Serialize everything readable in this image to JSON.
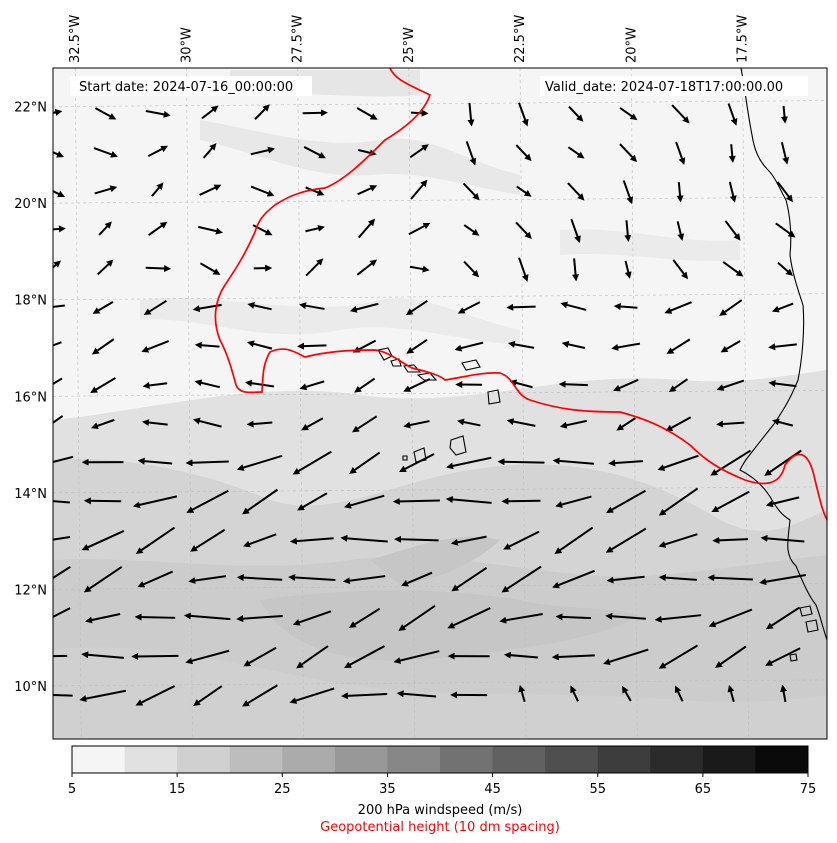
{
  "header": {
    "start_date": "Start date: 2024-07-16_00:00:00",
    "valid_date": "Valid_date: 2024-07-18T17:00:00.00"
  },
  "map": {
    "lon_labels": [
      "32.5°W",
      "30°W",
      "27.5°W",
      "25°W",
      "22.5°W",
      "20°W",
      "17.5°W"
    ],
    "lon_values": [
      -32.5,
      -30,
      -27.5,
      -25,
      -22.5,
      -20,
      -17.5
    ],
    "lat_labels": [
      "22°N",
      "20°N",
      "18°N",
      "16°N",
      "14°N",
      "12°N",
      "10°N"
    ],
    "lat_values": [
      22,
      20,
      18,
      16,
      14,
      12,
      10
    ],
    "lon_range": [
      -33,
      -15.6
    ],
    "lat_range": [
      8.9,
      22.8
    ],
    "gridlines": true,
    "contour_color": "#ff0000",
    "coast_color": "#000000"
  },
  "colorbar": {
    "tick_labels": [
      "5",
      "15",
      "25",
      "35",
      "45",
      "55",
      "65",
      "75"
    ],
    "levels": [
      5,
      10,
      15,
      20,
      25,
      30,
      35,
      40,
      45,
      50,
      55,
      60,
      65,
      70,
      75
    ],
    "colors": [
      "#f5f5f5",
      "#e1e1e1",
      "#d0d0d0",
      "#bdbdbd",
      "#ababab",
      "#989898",
      "#878787",
      "#727272",
      "#616161",
      "#4f4f4f",
      "#3d3d3d",
      "#2b2b2b",
      "#1a1a1a",
      "#0a0a0a"
    ],
    "label": "200 hPa windspeed (m/s)",
    "sublabel": "Geopotential height (10 dm spacing)"
  }
}
